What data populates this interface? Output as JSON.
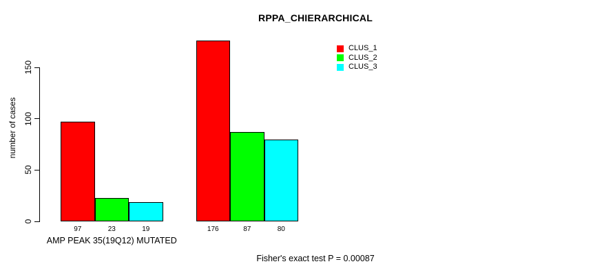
{
  "chart_data": {
    "type": "bar",
    "title": "RPPA_CHIERARCHICAL",
    "xlabel": "",
    "ylabel": "number of cases",
    "ylim": [
      0,
      150
    ],
    "yticks": [
      0,
      50,
      100,
      150
    ],
    "categories": [
      "AMP PEAK 35(19Q12) MUTATED",
      ""
    ],
    "series": [
      {
        "name": "CLUS_1",
        "color": "#FF0000",
        "values": [
          97,
          176
        ]
      },
      {
        "name": "CLUS_2",
        "color": "#00FF00",
        "values": [
          23,
          87
        ]
      },
      {
        "name": "CLUS_3",
        "color": "#00FFFF",
        "values": [
          19,
          80
        ]
      }
    ],
    "bar_labels": [
      [
        97,
        23,
        19
      ],
      [
        176,
        87,
        80
      ]
    ],
    "legend_entries": [
      "CLUS_1",
      "CLUS_2",
      "CLUS_3"
    ],
    "legend_position": "top-right",
    "grid": false,
    "annotation": "Fisher's exact test P = 0.00087",
    "bar_border_color": "#000000",
    "background_color": "#FFFFFF"
  }
}
